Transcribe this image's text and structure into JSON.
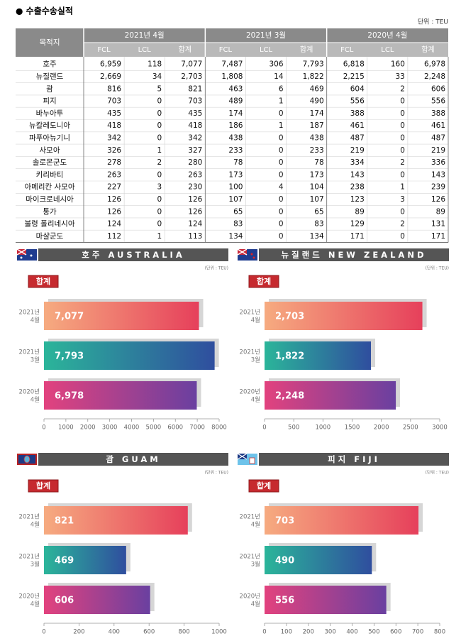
{
  "title": "● 수출수송실적",
  "unit": "단위 : TEU",
  "table": {
    "corner": "목적지",
    "groups": [
      "2021년 4월",
      "2021년 3월",
      "2020년 4월"
    ],
    "subheads": [
      "FCL",
      "LCL",
      "합계"
    ],
    "rows": [
      {
        "name": "호주",
        "cells": [
          "6,959",
          "118",
          "7,077",
          "7,487",
          "306",
          "7,793",
          "6,818",
          "160",
          "6,978"
        ]
      },
      {
        "name": "뉴질랜드",
        "cells": [
          "2,669",
          "34",
          "2,703",
          "1,808",
          "14",
          "1,822",
          "2,215",
          "33",
          "2,248"
        ]
      },
      {
        "name": "괌",
        "cells": [
          "816",
          "5",
          "821",
          "463",
          "6",
          "469",
          "604",
          "2",
          "606"
        ]
      },
      {
        "name": "피지",
        "cells": [
          "703",
          "0",
          "703",
          "489",
          "1",
          "490",
          "556",
          "0",
          "556"
        ]
      },
      {
        "name": "바누아투",
        "cells": [
          "435",
          "0",
          "435",
          "174",
          "0",
          "174",
          "388",
          "0",
          "388"
        ]
      },
      {
        "name": "뉴칼레도니아",
        "cells": [
          "418",
          "0",
          "418",
          "186",
          "1",
          "187",
          "461",
          "0",
          "461"
        ]
      },
      {
        "name": "파푸아뉴기니",
        "cells": [
          "342",
          "0",
          "342",
          "438",
          "0",
          "438",
          "487",
          "0",
          "487"
        ]
      },
      {
        "name": "사모아",
        "cells": [
          "326",
          "1",
          "327",
          "233",
          "0",
          "233",
          "219",
          "0",
          "219"
        ]
      },
      {
        "name": "솔로몬군도",
        "cells": [
          "278",
          "2",
          "280",
          "78",
          "0",
          "78",
          "334",
          "2",
          "336"
        ]
      },
      {
        "name": "키리바티",
        "cells": [
          "263",
          "0",
          "263",
          "173",
          "0",
          "173",
          "143",
          "0",
          "143"
        ]
      },
      {
        "name": "아메리칸 사모아",
        "cells": [
          "227",
          "3",
          "230",
          "100",
          "4",
          "104",
          "238",
          "1",
          "239"
        ]
      },
      {
        "name": "마이크로네시아",
        "cells": [
          "126",
          "0",
          "126",
          "107",
          "0",
          "107",
          "123",
          "3",
          "126"
        ]
      },
      {
        "name": "통가",
        "cells": [
          "126",
          "0",
          "126",
          "65",
          "0",
          "65",
          "89",
          "0",
          "89"
        ]
      },
      {
        "name": "불령 폴리네시아",
        "cells": [
          "124",
          "0",
          "124",
          "83",
          "0",
          "83",
          "129",
          "2",
          "131"
        ]
      },
      {
        "name": "마샬군도",
        "cells": [
          "112",
          "1",
          "113",
          "134",
          "0",
          "134",
          "171",
          "0",
          "171"
        ]
      }
    ]
  },
  "chart_data": [
    {
      "type": "hbar",
      "title": "호주 AUSTRALIA",
      "unit": "(단위 : TEU)",
      "badge": "합계",
      "categories": [
        "2021년 4월",
        "2021년 3월",
        "2020년 4월"
      ],
      "values": [
        7077,
        7793,
        6978
      ],
      "value_labels": [
        "7,077",
        "7,793",
        "6,978"
      ],
      "colors": [
        [
          "#f6ab80",
          "#e6405b"
        ],
        [
          "#2bb59a",
          "#2f4e9e"
        ],
        [
          "#e2427e",
          "#6a40a0"
        ]
      ],
      "xlim": [
        0,
        8000
      ],
      "xticks": [
        0,
        1000,
        2000,
        3000,
        4000,
        5000,
        6000,
        7000,
        8000
      ]
    },
    {
      "type": "hbar",
      "title": "뉴질랜드 NEW ZEALAND",
      "unit": "(단위 : TEU)",
      "badge": "합계",
      "categories": [
        "2021년 4월",
        "2021년 3월",
        "2020년 4월"
      ],
      "values": [
        2703,
        1822,
        2248
      ],
      "value_labels": [
        "2,703",
        "1,822",
        "2,248"
      ],
      "colors": [
        [
          "#f6ab80",
          "#e6405b"
        ],
        [
          "#2bb59a",
          "#2f4e9e"
        ],
        [
          "#e2427e",
          "#6a40a0"
        ]
      ],
      "xlim": [
        0,
        3000
      ],
      "xticks": [
        0,
        500,
        1000,
        1500,
        2000,
        2500,
        3000
      ]
    },
    {
      "type": "hbar",
      "title": "괌 GUAM",
      "unit": "(단위 : TEU)",
      "badge": "합계",
      "categories": [
        "2021년 4월",
        "2021년 3월",
        "2020년 4월"
      ],
      "values": [
        821,
        469,
        606
      ],
      "colors": [
        [
          "#f6ab80",
          "#e6405b"
        ],
        [
          "#2bb59a",
          "#2f4e9e"
        ],
        [
          "#e2427e",
          "#6a40a0"
        ]
      ],
      "xlim": [
        0,
        1000
      ],
      "xticks": [
        0,
        200,
        400,
        600,
        800,
        1000
      ]
    },
    {
      "type": "hbar",
      "title": "피지 FIJI",
      "unit": "(단위 : TEU)",
      "badge": "합계",
      "categories": [
        "2021년 4월",
        "2021년 3월",
        "2020년 4월"
      ],
      "values": [
        703,
        490,
        556
      ],
      "colors": [
        [
          "#f6ab80",
          "#e6405b"
        ],
        [
          "#2bb59a",
          "#2f4e9e"
        ],
        [
          "#e2427e",
          "#6a40a0"
        ]
      ],
      "xlim": [
        0,
        800
      ],
      "xticks": [
        0,
        100,
        200,
        300,
        400,
        500,
        600,
        700,
        800
      ]
    }
  ]
}
